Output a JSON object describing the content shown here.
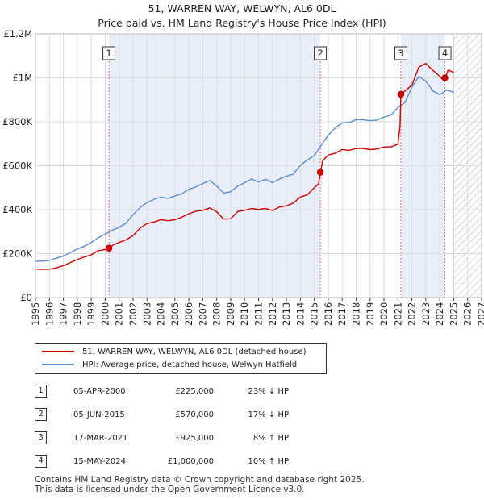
{
  "title": "51, WARREN WAY, WELWYN, AL6 0DL",
  "subtitle": "Price paid vs. HM Land Registry's House Price Index (HPI)",
  "colors": {
    "property": "#cc0000",
    "hpi": "#5b8fd0",
    "shade": "#e8eefa"
  },
  "chart_data": {
    "type": "line",
    "x_range": [
      1995,
      2027
    ],
    "ylim": [
      0,
      1200000
    ],
    "y_ticks": [
      {
        "value": 0,
        "label": "£0"
      },
      {
        "value": 200000,
        "label": "£200K"
      },
      {
        "value": 400000,
        "label": "£400K"
      },
      {
        "value": 600000,
        "label": "£600K"
      },
      {
        "value": 800000,
        "label": "£800K"
      },
      {
        "value": 1000000,
        "label": "£1M"
      },
      {
        "value": 1200000,
        "label": "£1.2M"
      }
    ],
    "x_ticks": [
      "1995",
      "1996",
      "1997",
      "1998",
      "1999",
      "2000",
      "2001",
      "2002",
      "2003",
      "2004",
      "2005",
      "2006",
      "2007",
      "2008",
      "2009",
      "2010",
      "2011",
      "2012",
      "2013",
      "2014",
      "2015",
      "2016",
      "2017",
      "2018",
      "2019",
      "2020",
      "2021",
      "2022",
      "2023",
      "2024",
      "2025",
      "2026",
      "2027"
    ],
    "forecast_start": 2025.0,
    "ownership_periods": [
      [
        2000.27,
        2015.43
      ],
      [
        2021.21,
        2024.37
      ]
    ],
    "series": [
      {
        "name": "51, WARREN WAY, WELWYN, AL6 0DL (detached house)",
        "color": "#cc0000",
        "x": [
          1995.0,
          1995.5,
          1996.0,
          1996.5,
          1997.0,
          1997.5,
          1998.0,
          1998.5,
          1999.0,
          1999.5,
          2000.0,
          2000.27,
          2000.6,
          2001.0,
          2001.5,
          2002.0,
          2002.5,
          2003.0,
          2003.5,
          2004.0,
          2004.5,
          2005.0,
          2005.5,
          2006.0,
          2006.5,
          2007.0,
          2007.5,
          2008.0,
          2008.5,
          2009.0,
          2009.5,
          2010.0,
          2010.5,
          2011.0,
          2011.5,
          2012.0,
          2012.5,
          2013.0,
          2013.5,
          2014.0,
          2014.5,
          2015.0,
          2015.3,
          2015.43,
          2015.6,
          2016.0,
          2016.5,
          2017.0,
          2017.5,
          2018.0,
          2018.5,
          2019.0,
          2019.5,
          2020.0,
          2020.5,
          2021.0,
          2021.15,
          2021.21,
          2021.5,
          2022.0,
          2022.5,
          2023.0,
          2023.5,
          2024.0,
          2024.2,
          2024.37,
          2024.6,
          2025.0
        ],
        "values": [
          130000,
          128000,
          130000,
          135000,
          145000,
          160000,
          172000,
          185000,
          195000,
          212000,
          220000,
          225000,
          240000,
          252000,
          262000,
          282000,
          318000,
          335000,
          345000,
          355000,
          348000,
          356000,
          365000,
          380000,
          395000,
          395000,
          408000,
          392000,
          355000,
          360000,
          392000,
          395000,
          408000,
          400000,
          405000,
          398000,
          410000,
          418000,
          432000,
          455000,
          470000,
          500000,
          515000,
          570000,
          620000,
          648000,
          660000,
          670000,
          672000,
          680000,
          675000,
          677000,
          675000,
          683000,
          690000,
          695000,
          780000,
          925000,
          935000,
          970000,
          1050000,
          1060000,
          1040000,
          1005000,
          990000,
          1000000,
          1030000,
          1025000
        ]
      },
      {
        "name": "HPI: Average price, detached house, Welwyn Hatfield",
        "color": "#5b8fd0",
        "x": [
          1995.0,
          1995.5,
          1996.0,
          1996.5,
          1997.0,
          1997.5,
          1998.0,
          1998.5,
          1999.0,
          1999.5,
          2000.0,
          2000.5,
          2001.0,
          2001.5,
          2002.0,
          2002.5,
          2003.0,
          2003.5,
          2004.0,
          2004.5,
          2005.0,
          2005.5,
          2006.0,
          2006.5,
          2007.0,
          2007.5,
          2008.0,
          2008.5,
          2009.0,
          2009.5,
          2010.0,
          2010.5,
          2011.0,
          2011.5,
          2012.0,
          2012.5,
          2013.0,
          2013.5,
          2014.0,
          2014.5,
          2015.0,
          2015.5,
          2016.0,
          2016.5,
          2017.0,
          2017.5,
          2018.0,
          2018.5,
          2019.0,
          2019.5,
          2020.0,
          2020.5,
          2021.0,
          2021.5,
          2022.0,
          2022.5,
          2023.0,
          2023.5,
          2024.0,
          2024.5,
          2025.0
        ],
        "values": [
          165000,
          166000,
          170000,
          178000,
          190000,
          205000,
          220000,
          235000,
          250000,
          272000,
          290000,
          305000,
          320000,
          340000,
          375000,
          412000,
          432000,
          445000,
          460000,
          450000,
          462000,
          475000,
          490000,
          505000,
          520000,
          530000,
          510000,
          475000,
          480000,
          510000,
          520000,
          540000,
          528000,
          535000,
          525000,
          540000,
          550000,
          565000,
          600000,
          625000,
          650000,
          690000,
          740000,
          775000,
          790000,
          800000,
          810000,
          805000,
          810000,
          805000,
          820000,
          835000,
          860000,
          890000,
          960000,
          1000000,
          990000,
          940000,
          920000,
          950000,
          935000
        ]
      }
    ],
    "sales": [
      {
        "id": "1",
        "x": 2000.27,
        "value": 225000
      },
      {
        "id": "2",
        "x": 2015.43,
        "value": 570000
      },
      {
        "id": "3",
        "x": 2021.21,
        "value": 925000
      },
      {
        "id": "4",
        "x": 2024.37,
        "value": 1000000
      }
    ]
  },
  "legend": [
    {
      "label": "51, WARREN WAY, WELWYN, AL6 0DL (detached house)",
      "color": "#cc0000"
    },
    {
      "label": "HPI: Average price, detached house, Welwyn Hatfield",
      "color": "#5b8fd0"
    }
  ],
  "sales_table": [
    {
      "num": "1",
      "date": "05-APR-2000",
      "price": "£225,000",
      "hpi": "23% ↓ HPI"
    },
    {
      "num": "2",
      "date": "05-JUN-2015",
      "price": "£570,000",
      "hpi": "17% ↓ HPI"
    },
    {
      "num": "3",
      "date": "17-MAR-2021",
      "price": "£925,000",
      "hpi": "8% ↑ HPI"
    },
    {
      "num": "4",
      "date": "15-MAY-2024",
      "price": "£1,000,000",
      "hpi": "10% ↑ HPI"
    }
  ],
  "footer": {
    "line1": "Contains HM Land Registry data © Crown copyright and database right 2025.",
    "line2": "This data is licensed under the Open Government Licence v3.0."
  }
}
